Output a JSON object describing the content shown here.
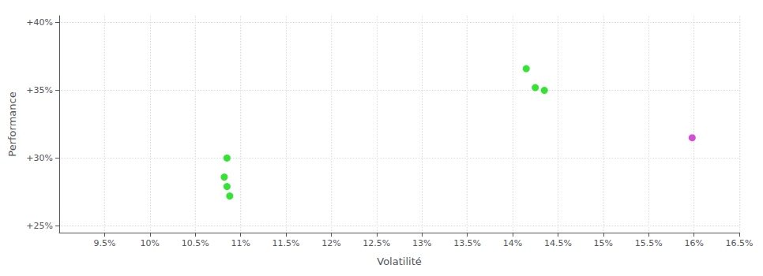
{
  "chart_data": {
    "type": "scatter",
    "xlabel": "Volatilité",
    "ylabel": "Performance",
    "xlim": [
      0.09,
      0.165
    ],
    "ylim": [
      0.245,
      0.405
    ],
    "xticks": [
      {
        "value": 0.095,
        "label": "9.5%"
      },
      {
        "value": 0.1,
        "label": "10%"
      },
      {
        "value": 0.105,
        "label": "10.5%"
      },
      {
        "value": 0.11,
        "label": "11%"
      },
      {
        "value": 0.115,
        "label": "11.5%"
      },
      {
        "value": 0.12,
        "label": "12%"
      },
      {
        "value": 0.125,
        "label": "12.5%"
      },
      {
        "value": 0.13,
        "label": "13%"
      },
      {
        "value": 0.135,
        "label": "13.5%"
      },
      {
        "value": 0.14,
        "label": "14%"
      },
      {
        "value": 0.145,
        "label": "14.5%"
      },
      {
        "value": 0.15,
        "label": "15%"
      },
      {
        "value": 0.155,
        "label": "15.5%"
      },
      {
        "value": 0.16,
        "label": "16%"
      },
      {
        "value": 0.165,
        "label": "16.5%"
      }
    ],
    "yticks": [
      {
        "value": 0.25,
        "label": "+25%"
      },
      {
        "value": 0.3,
        "label": "+30%"
      },
      {
        "value": 0.35,
        "label": "+35%"
      },
      {
        "value": 0.4,
        "label": "+40%"
      }
    ],
    "grid": true,
    "series": [
      {
        "color": "#00dd00",
        "x": [
          0.1085,
          0.1082,
          0.1085,
          0.1088,
          0.1415,
          0.1425,
          0.1435
        ],
        "values": [
          0.3,
          0.286,
          0.279,
          0.272,
          0.366,
          0.352,
          0.35
        ]
      },
      {
        "color": "#cc22cc",
        "x": [
          0.1598
        ],
        "values": [
          0.315
        ]
      }
    ]
  }
}
